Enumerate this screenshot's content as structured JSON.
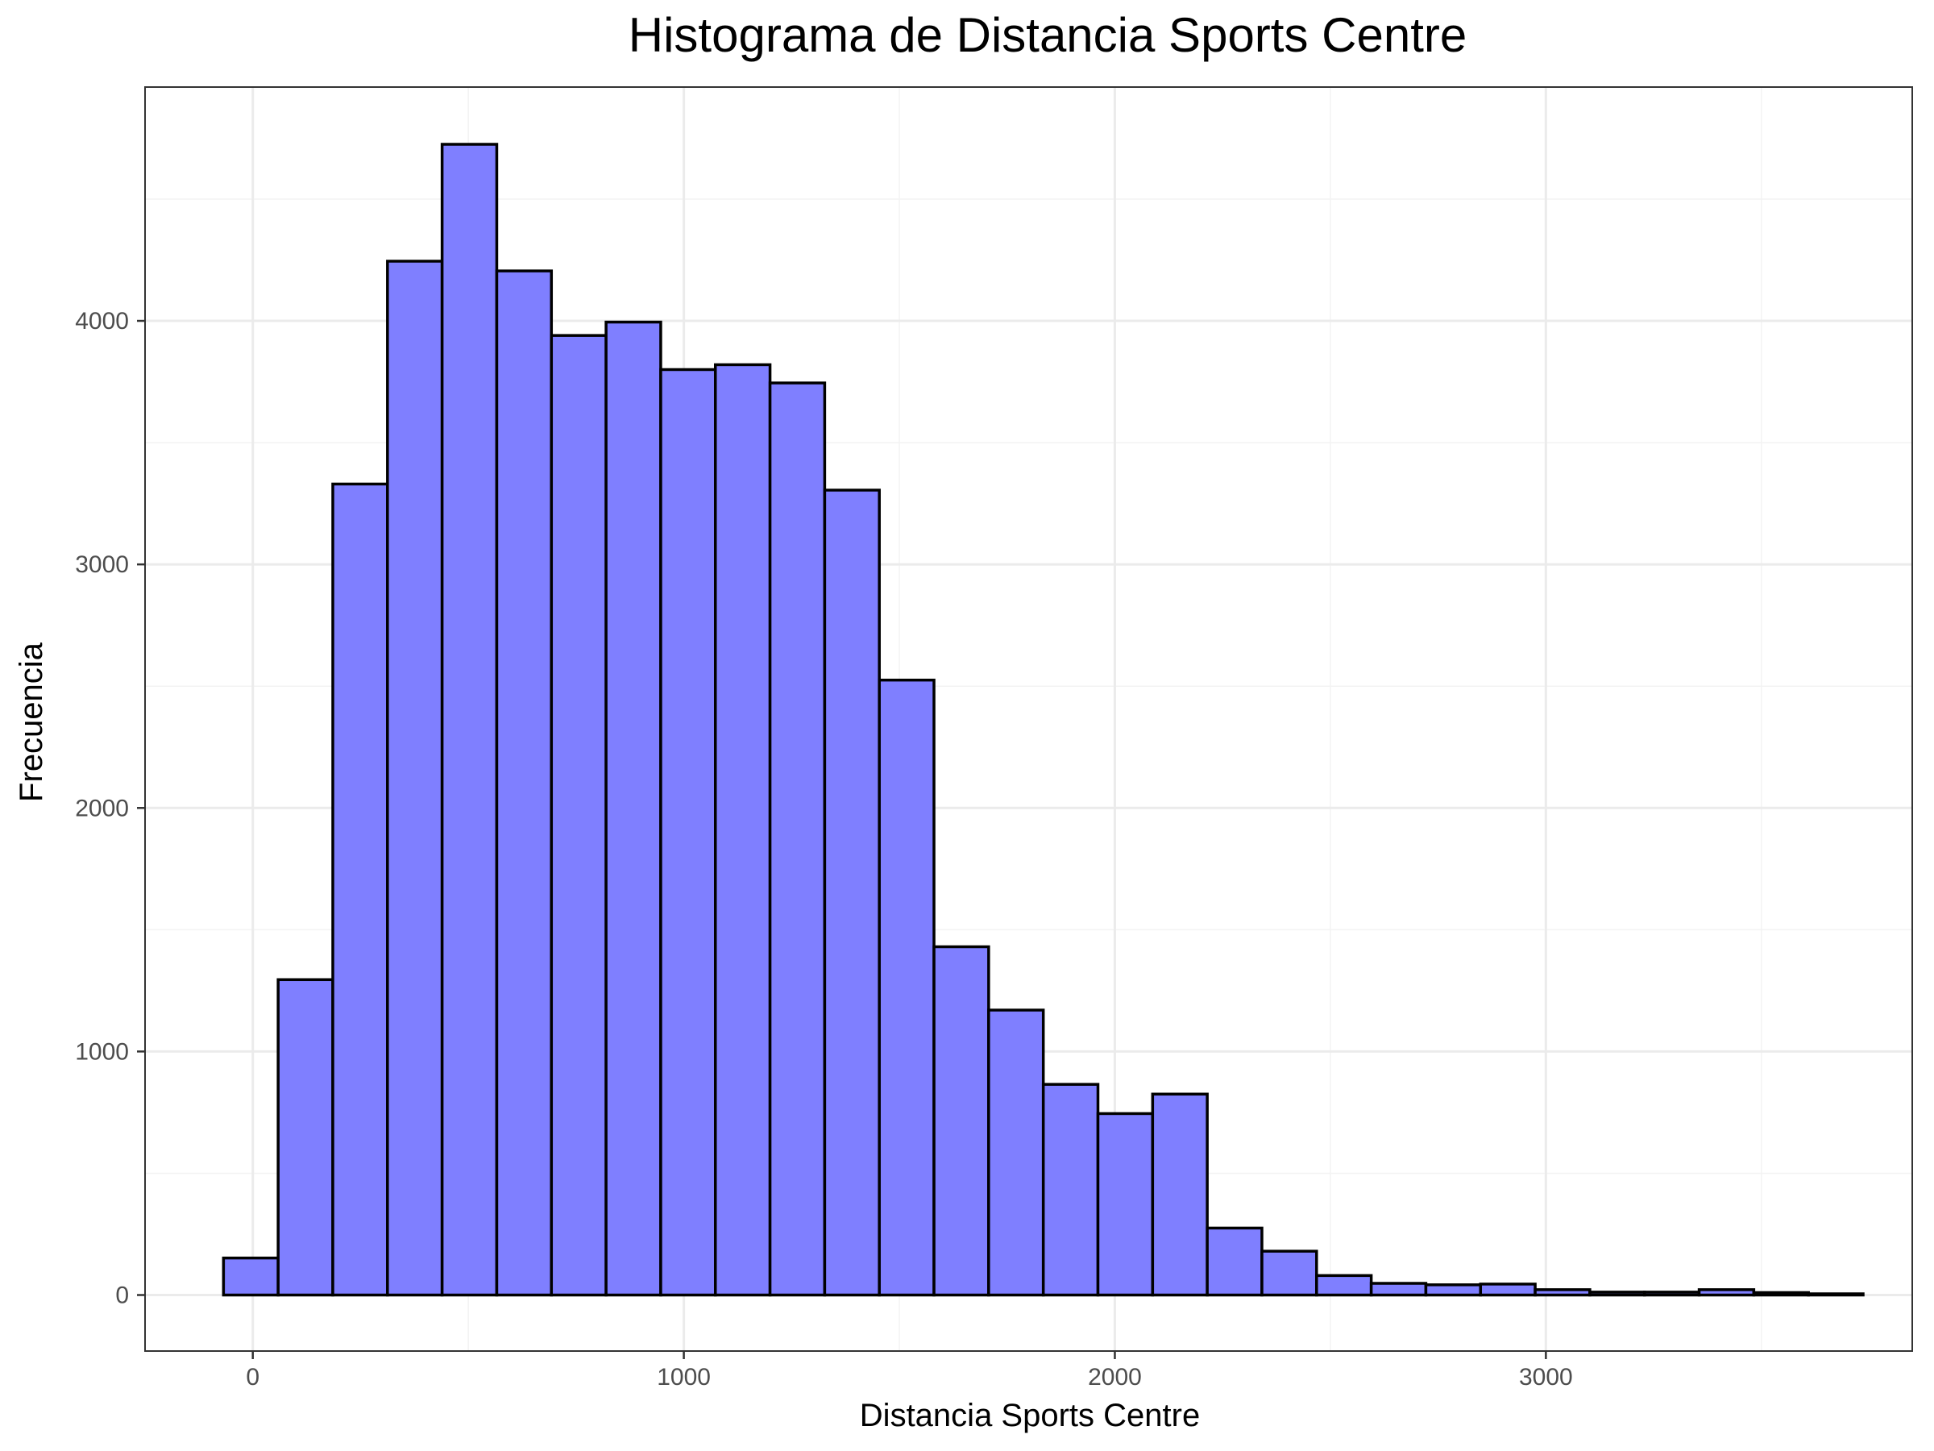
{
  "chart_data": {
    "type": "bar",
    "title": "Histograma de Distancia Sports Centre",
    "xlabel": "Distancia Sports Centre",
    "ylabel": "Frecuencia",
    "xlim": [
      -250,
      3850
    ],
    "ylim": [
      -230,
      4960
    ],
    "x_ticks": [
      0,
      1000,
      2000,
      3000
    ],
    "x_tick_labels": [
      "0",
      "1000",
      "2000",
      "3000"
    ],
    "y_ticks": [
      0,
      1000,
      2000,
      3000,
      4000
    ],
    "y_tick_labels": [
      "0",
      "1000",
      "2000",
      "3000",
      "4000"
    ],
    "grid": true,
    "bin_width": 126.8,
    "bins": [
      {
        "x0": -68,
        "x1": 58.8,
        "count": 152
      },
      {
        "x0": 58.8,
        "x1": 185.6,
        "count": 1295
      },
      {
        "x0": 185.6,
        "x1": 312.4,
        "count": 3330
      },
      {
        "x0": 312.4,
        "x1": 439.2,
        "count": 4245
      },
      {
        "x0": 439.2,
        "x1": 566,
        "count": 4725
      },
      {
        "x0": 566,
        "x1": 692.8,
        "count": 4205
      },
      {
        "x0": 692.8,
        "x1": 819.6,
        "count": 3940
      },
      {
        "x0": 819.6,
        "x1": 946.4,
        "count": 3995
      },
      {
        "x0": 946.4,
        "x1": 1073.2,
        "count": 3800
      },
      {
        "x0": 1073.2,
        "x1": 1200,
        "count": 3820
      },
      {
        "x0": 1200,
        "x1": 1326.8,
        "count": 3745
      },
      {
        "x0": 1326.8,
        "x1": 1453.6,
        "count": 3305
      },
      {
        "x0": 1453.6,
        "x1": 1580.4,
        "count": 2525
      },
      {
        "x0": 1580.4,
        "x1": 1707.2,
        "count": 1430
      },
      {
        "x0": 1707.2,
        "x1": 1834,
        "count": 1170
      },
      {
        "x0": 1834,
        "x1": 1960.8,
        "count": 865
      },
      {
        "x0": 1960.8,
        "x1": 2087.6,
        "count": 745
      },
      {
        "x0": 2087.6,
        "x1": 2214.4,
        "count": 825
      },
      {
        "x0": 2214.4,
        "x1": 2341.2,
        "count": 275
      },
      {
        "x0": 2341.2,
        "x1": 2468,
        "count": 180
      },
      {
        "x0": 2468,
        "x1": 2594.8,
        "count": 80
      },
      {
        "x0": 2594.8,
        "x1": 2721.6,
        "count": 48
      },
      {
        "x0": 2721.6,
        "x1": 2848.4,
        "count": 42
      },
      {
        "x0": 2848.4,
        "x1": 2975.2,
        "count": 45
      },
      {
        "x0": 2975.2,
        "x1": 3102,
        "count": 22
      },
      {
        "x0": 3102,
        "x1": 3228.8,
        "count": 12
      },
      {
        "x0": 3228.8,
        "x1": 3355.6,
        "count": 12
      },
      {
        "x0": 3355.6,
        "x1": 3482.4,
        "count": 22
      },
      {
        "x0": 3482.4,
        "x1": 3609.2,
        "count": 10
      },
      {
        "x0": 3609.2,
        "x1": 3736,
        "count": 5
      }
    ],
    "colors": {
      "bar_fill": "#7f7fff",
      "bar_stroke": "#000000",
      "grid": "#ebebeb",
      "panel_border": "#333333",
      "tick_label": "#4d4d4d"
    }
  }
}
